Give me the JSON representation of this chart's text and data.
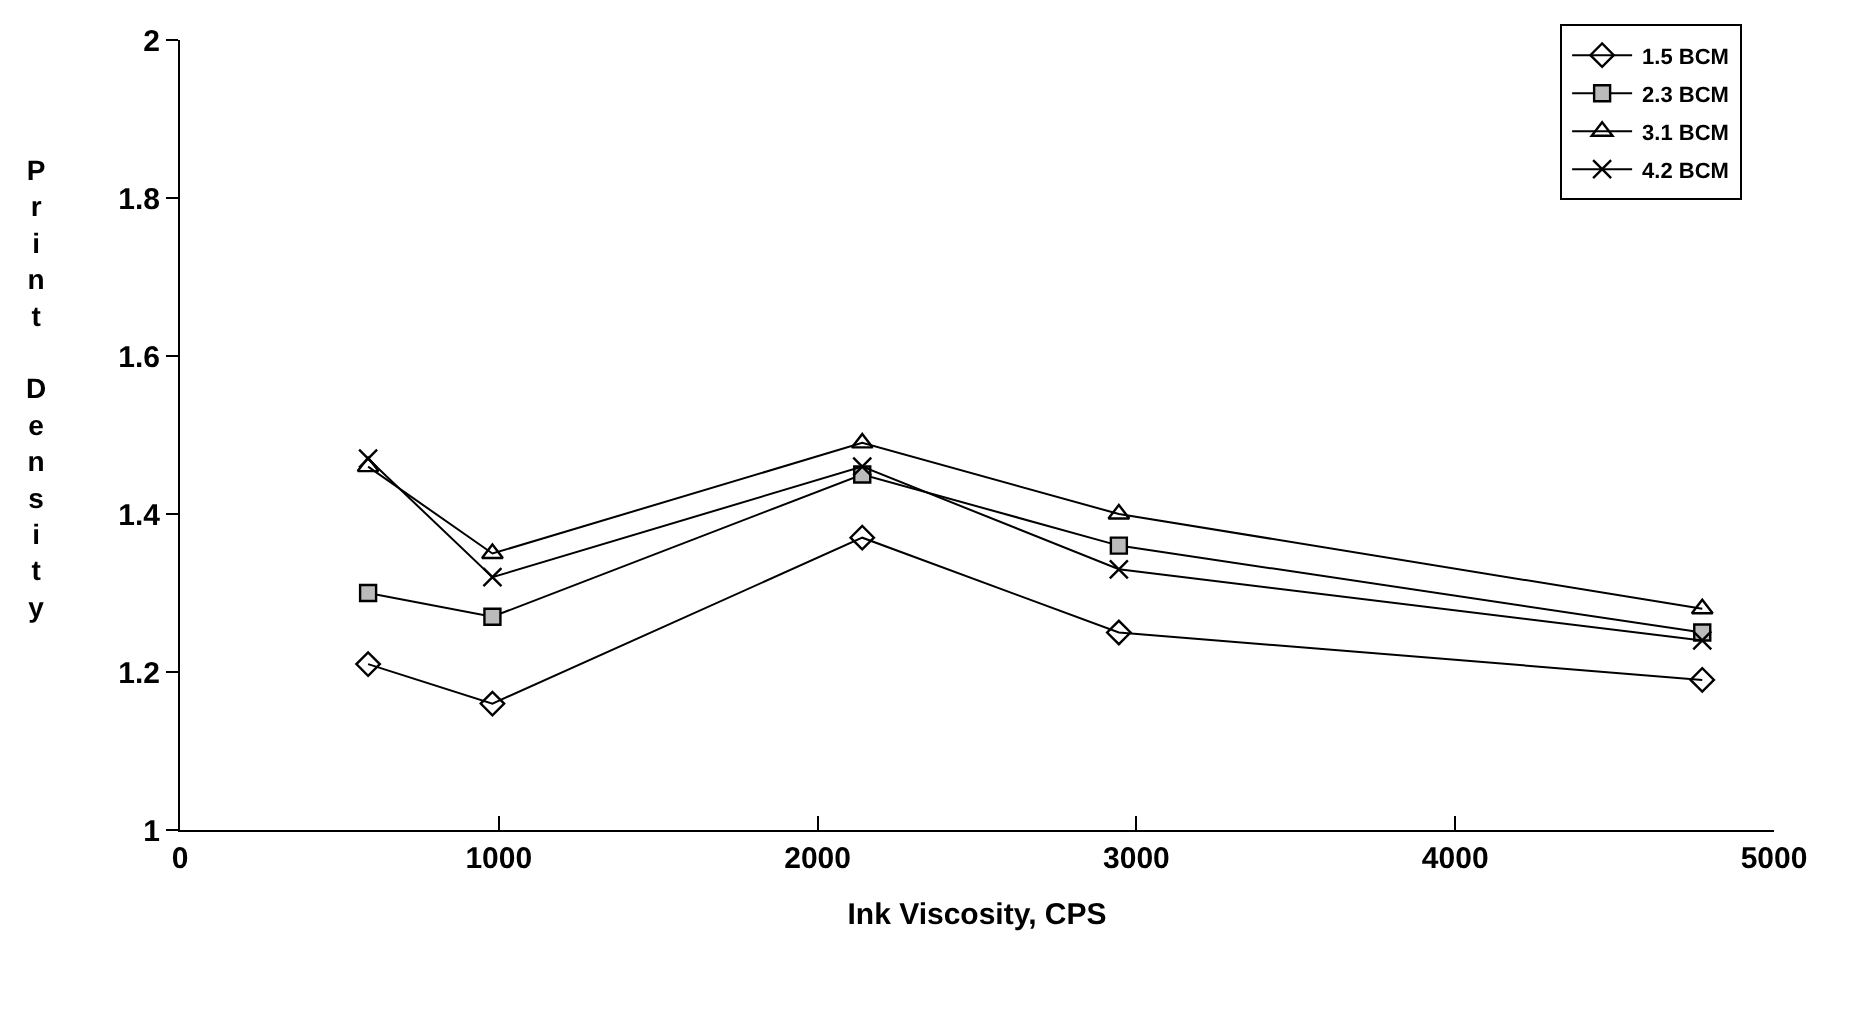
{
  "chart_data": {
    "type": "line",
    "xlabel": "Ink Viscosity, CPS",
    "ylabel": "Print Density",
    "xlim": [
      0,
      5000
    ],
    "xticks": [
      0,
      1000,
      2000,
      3000,
      4000,
      5000
    ],
    "ylim": [
      1,
      2
    ],
    "yticks": [
      1,
      1.2,
      1.4,
      1.6,
      1.8,
      2
    ],
    "grid": false,
    "legend": "top right",
    "line_style": "solid",
    "x": [
      590,
      980,
      2140,
      2945,
      4775
    ],
    "series": [
      {
        "name": "1.5 BCM",
        "color": "#000000",
        "marker": "diamond",
        "values": [
          1.21,
          1.16,
          1.37,
          1.25,
          1.19
        ]
      },
      {
        "name": "2.3 BCM",
        "color": "#000000",
        "marker": "square",
        "values": [
          1.3,
          1.27,
          1.45,
          1.36,
          1.25
        ]
      },
      {
        "name": "3.1 BCM",
        "color": "#000000",
        "marker": "triangle",
        "values": [
          1.46,
          1.35,
          1.49,
          1.4,
          1.28
        ]
      },
      {
        "name": "4.2 BCM",
        "color": "#000000",
        "marker": "cross",
        "values": [
          1.47,
          1.32,
          1.46,
          1.33,
          1.24
        ]
      }
    ]
  }
}
